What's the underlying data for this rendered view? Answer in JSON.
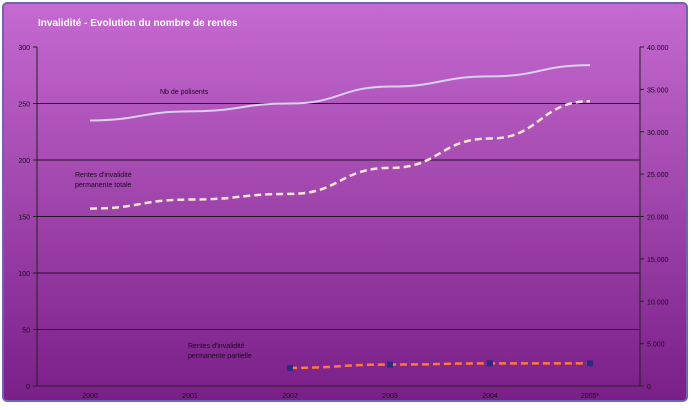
{
  "chart_data": {
    "type": "line",
    "title": "Invalidité - Evolution du nombre de rentes",
    "categories": [
      "2000",
      "2001",
      "2002",
      "2003",
      "2004",
      "2005*"
    ],
    "y_left": {
      "min": 0,
      "max": 300,
      "ticks": [
        "0",
        "50",
        "100",
        "150",
        "200",
        "250",
        "300"
      ]
    },
    "y_right": {
      "min": 0,
      "max": 40000,
      "ticks": [
        "0",
        "5.000",
        "10.000",
        "15.000",
        "20.000",
        "25.000",
        "30.000",
        "35.000",
        "40.000"
      ]
    },
    "grid": true,
    "series": [
      {
        "name": "Nb de polisents",
        "axis": "left",
        "values": [
          235,
          243,
          250,
          265,
          274,
          284
        ],
        "color": "#d8d0ee",
        "style": "solid"
      },
      {
        "name": "Rentes d'invalidité permanente totale",
        "axis": "left",
        "values": [
          157,
          165,
          170,
          193,
          219,
          252
        ],
        "color": "#fbe7d2",
        "style": "dashed"
      },
      {
        "name": "Rentes d'invalidité permanente partielle",
        "axis": "left",
        "values": [
          null,
          null,
          16,
          19,
          20,
          20
        ],
        "color": "#ff7a3a",
        "style": "dashed",
        "marker_color": "#2b2a86"
      }
    ],
    "annotations": [
      {
        "text": "Nb de polisents",
        "series": 0
      },
      {
        "text": "Rentes d'invalidité permanente totale",
        "series": 1
      },
      {
        "text": "Rentes d'invalidité permanente partielle",
        "series": 2
      }
    ],
    "colors": {
      "frame_border": "#6c66b0",
      "background_top": "#c56ad0",
      "background_bottom": "#7a1f88",
      "gridline": "#2a0e2f",
      "axis_text": "#111111",
      "title_text": "#ffffff"
    }
  }
}
